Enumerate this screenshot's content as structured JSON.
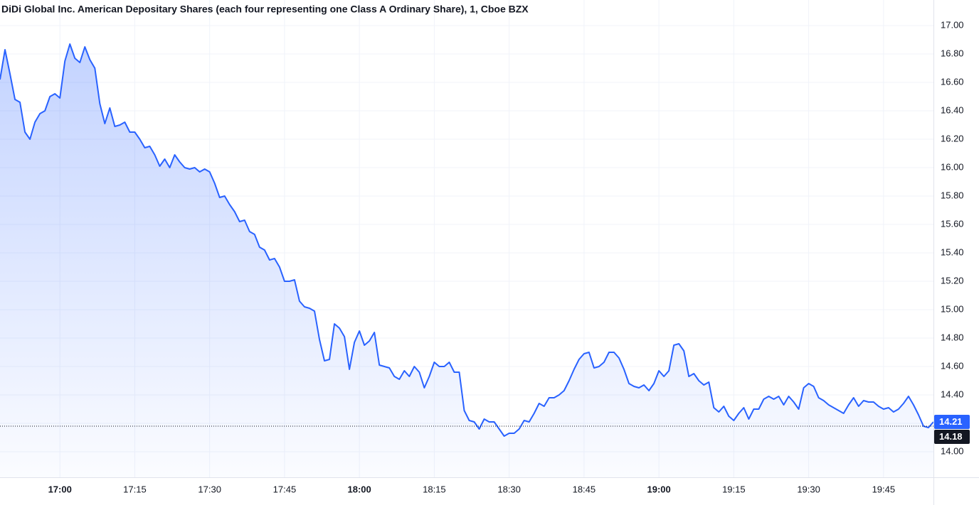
{
  "chart_data": {
    "type": "area",
    "title": "DiDi Global Inc. American Depositary Shares (each four representing one Class A Ordinary Share), 1, Cboe BZX",
    "x": [
      "16:48",
      "16:49",
      "16:50",
      "16:51",
      "16:52",
      "16:53",
      "16:54",
      "16:55",
      "16:56",
      "16:57",
      "16:58",
      "16:59",
      "17:00",
      "17:01",
      "17:02",
      "17:03",
      "17:04",
      "17:05",
      "17:06",
      "17:07",
      "17:08",
      "17:09",
      "17:10",
      "17:11",
      "17:12",
      "17:13",
      "17:14",
      "17:15",
      "17:16",
      "17:17",
      "17:18",
      "17:19",
      "17:20",
      "17:21",
      "17:22",
      "17:23",
      "17:24",
      "17:25",
      "17:26",
      "17:27",
      "17:28",
      "17:29",
      "17:30",
      "17:31",
      "17:32",
      "17:33",
      "17:34",
      "17:35",
      "17:36",
      "17:37",
      "17:38",
      "17:39",
      "17:40",
      "17:41",
      "17:42",
      "17:43",
      "17:44",
      "17:45",
      "17:46",
      "17:47",
      "17:48",
      "17:49",
      "17:50",
      "17:51",
      "17:52",
      "17:53",
      "17:54",
      "17:55",
      "17:56",
      "17:57",
      "17:58",
      "17:59",
      "18:00",
      "18:01",
      "18:02",
      "18:03",
      "18:04",
      "18:05",
      "18:06",
      "18:07",
      "18:08",
      "18:09",
      "18:10",
      "18:11",
      "18:12",
      "18:13",
      "18:14",
      "18:15",
      "18:16",
      "18:17",
      "18:18",
      "18:19",
      "18:20",
      "18:21",
      "18:22",
      "18:23",
      "18:24",
      "18:25",
      "18:26",
      "18:27",
      "18:28",
      "18:29",
      "18:30",
      "18:31",
      "18:32",
      "18:33",
      "18:34",
      "18:35",
      "18:36",
      "18:37",
      "18:38",
      "18:39",
      "18:40",
      "18:41",
      "18:42",
      "18:43",
      "18:44",
      "18:45",
      "18:46",
      "18:47",
      "18:48",
      "18:49",
      "18:50",
      "18:51",
      "18:52",
      "18:53",
      "18:54",
      "18:55",
      "18:56",
      "18:57",
      "18:58",
      "18:59",
      "19:00",
      "19:01",
      "19:02",
      "19:03",
      "19:04",
      "19:05",
      "19:06",
      "19:07",
      "19:08",
      "19:09",
      "19:10",
      "19:11",
      "19:12",
      "19:13",
      "19:14",
      "19:15",
      "19:16",
      "19:17",
      "19:18",
      "19:19",
      "19:20",
      "19:21",
      "19:22",
      "19:23",
      "19:24",
      "19:25",
      "19:26",
      "19:27",
      "19:28",
      "19:29",
      "19:30",
      "19:31",
      "19:32",
      "19:33",
      "19:34",
      "19:35",
      "19:36",
      "19:37",
      "19:38",
      "19:39",
      "19:40",
      "19:41",
      "19:42",
      "19:43",
      "19:44",
      "19:45",
      "19:46",
      "19:47",
      "19:48",
      "19:49",
      "19:50",
      "19:51",
      "19:52",
      "19:53",
      "19:54",
      "19:55"
    ],
    "series": [
      {
        "color": "#2962ff",
        "values": [
          16.62,
          16.83,
          16.66,
          16.48,
          16.46,
          16.25,
          16.2,
          16.32,
          16.38,
          16.4,
          16.5,
          16.52,
          16.49,
          16.75,
          16.87,
          16.77,
          16.74,
          16.85,
          16.76,
          16.7,
          16.45,
          16.31,
          16.42,
          16.29,
          16.3,
          16.32,
          16.25,
          16.25,
          16.2,
          16.14,
          16.15,
          16.09,
          16.01,
          16.06,
          16.0,
          16.09,
          16.04,
          16.0,
          15.99,
          16.0,
          15.97,
          15.99,
          15.97,
          15.89,
          15.79,
          15.8,
          15.74,
          15.69,
          15.62,
          15.63,
          15.55,
          15.53,
          15.44,
          15.42,
          15.35,
          15.36,
          15.3,
          15.2,
          15.2,
          15.21,
          15.06,
          15.02,
          15.01,
          14.99,
          14.79,
          14.64,
          14.65,
          14.9,
          14.87,
          14.81,
          14.58,
          14.77,
          14.85,
          14.75,
          14.78,
          14.84,
          14.61,
          14.6,
          14.59,
          14.53,
          14.51,
          14.57,
          14.53,
          14.6,
          14.56,
          14.45,
          14.53,
          14.63,
          14.6,
          14.6,
          14.63,
          14.56,
          14.56,
          14.29,
          14.22,
          14.21,
          14.16,
          14.23,
          14.21,
          14.21,
          14.16,
          14.11,
          14.13,
          14.13,
          14.16,
          14.22,
          14.21,
          14.27,
          14.34,
          14.32,
          14.38,
          14.38,
          14.4,
          14.43,
          14.5,
          14.58,
          14.65,
          14.69,
          14.7,
          14.59,
          14.6,
          14.63,
          14.7,
          14.7,
          14.66,
          14.58,
          14.48,
          14.46,
          14.45,
          14.47,
          14.43,
          14.48,
          14.57,
          14.53,
          14.57,
          14.75,
          14.76,
          14.71,
          14.53,
          14.55,
          14.5,
          14.47,
          14.49,
          14.31,
          14.28,
          14.32,
          14.25,
          14.22,
          14.27,
          14.31,
          14.23,
          14.3,
          14.3,
          14.37,
          14.39,
          14.37,
          14.39,
          14.33,
          14.39,
          14.35,
          14.3,
          14.45,
          14.48,
          14.46,
          14.38,
          14.36,
          14.33,
          14.31,
          14.29,
          14.27,
          14.33,
          14.38,
          14.32,
          14.36,
          14.35,
          14.35,
          14.32,
          14.3,
          14.31,
          14.28,
          14.3,
          14.34,
          14.39,
          14.33,
          14.26,
          14.18,
          14.17,
          14.21
        ]
      }
    ],
    "xlim": [
      "16:48",
      "19:55"
    ],
    "xticks": [
      "17:00",
      "17:15",
      "17:30",
      "17:45",
      "18:00",
      "18:15",
      "18:30",
      "18:45",
      "19:00",
      "19:15",
      "19:30",
      "19:45"
    ],
    "ylim": [
      13.82,
      17.18
    ],
    "yticks": [
      {
        "value": 14,
        "label": "14.00"
      },
      {
        "value": 14.2,
        "label": "14.20"
      },
      {
        "value": 14.4,
        "label": "14.40"
      },
      {
        "value": 14.6,
        "label": "14.60"
      },
      {
        "value": 14.8,
        "label": "14.80"
      },
      {
        "value": 15,
        "label": "15.00"
      },
      {
        "value": 15.2,
        "label": "15.20"
      },
      {
        "value": 15.4,
        "label": "15.40"
      },
      {
        "value": 15.6,
        "label": "15.60"
      },
      {
        "value": 15.8,
        "label": "15.80"
      },
      {
        "value": 16,
        "label": "16.00"
      },
      {
        "value": 16.2,
        "label": "16.20"
      },
      {
        "value": 16.4,
        "label": "16.40"
      },
      {
        "value": 16.6,
        "label": "16.60"
      },
      {
        "value": 16.8,
        "label": "16.80"
      },
      {
        "value": 17,
        "label": "17.00"
      }
    ],
    "grid": true,
    "price_markers": [
      {
        "value": 14.21,
        "color": "#2962ff"
      },
      {
        "value": 14.18,
        "color": "#131722",
        "dotted_line": true
      }
    ]
  }
}
